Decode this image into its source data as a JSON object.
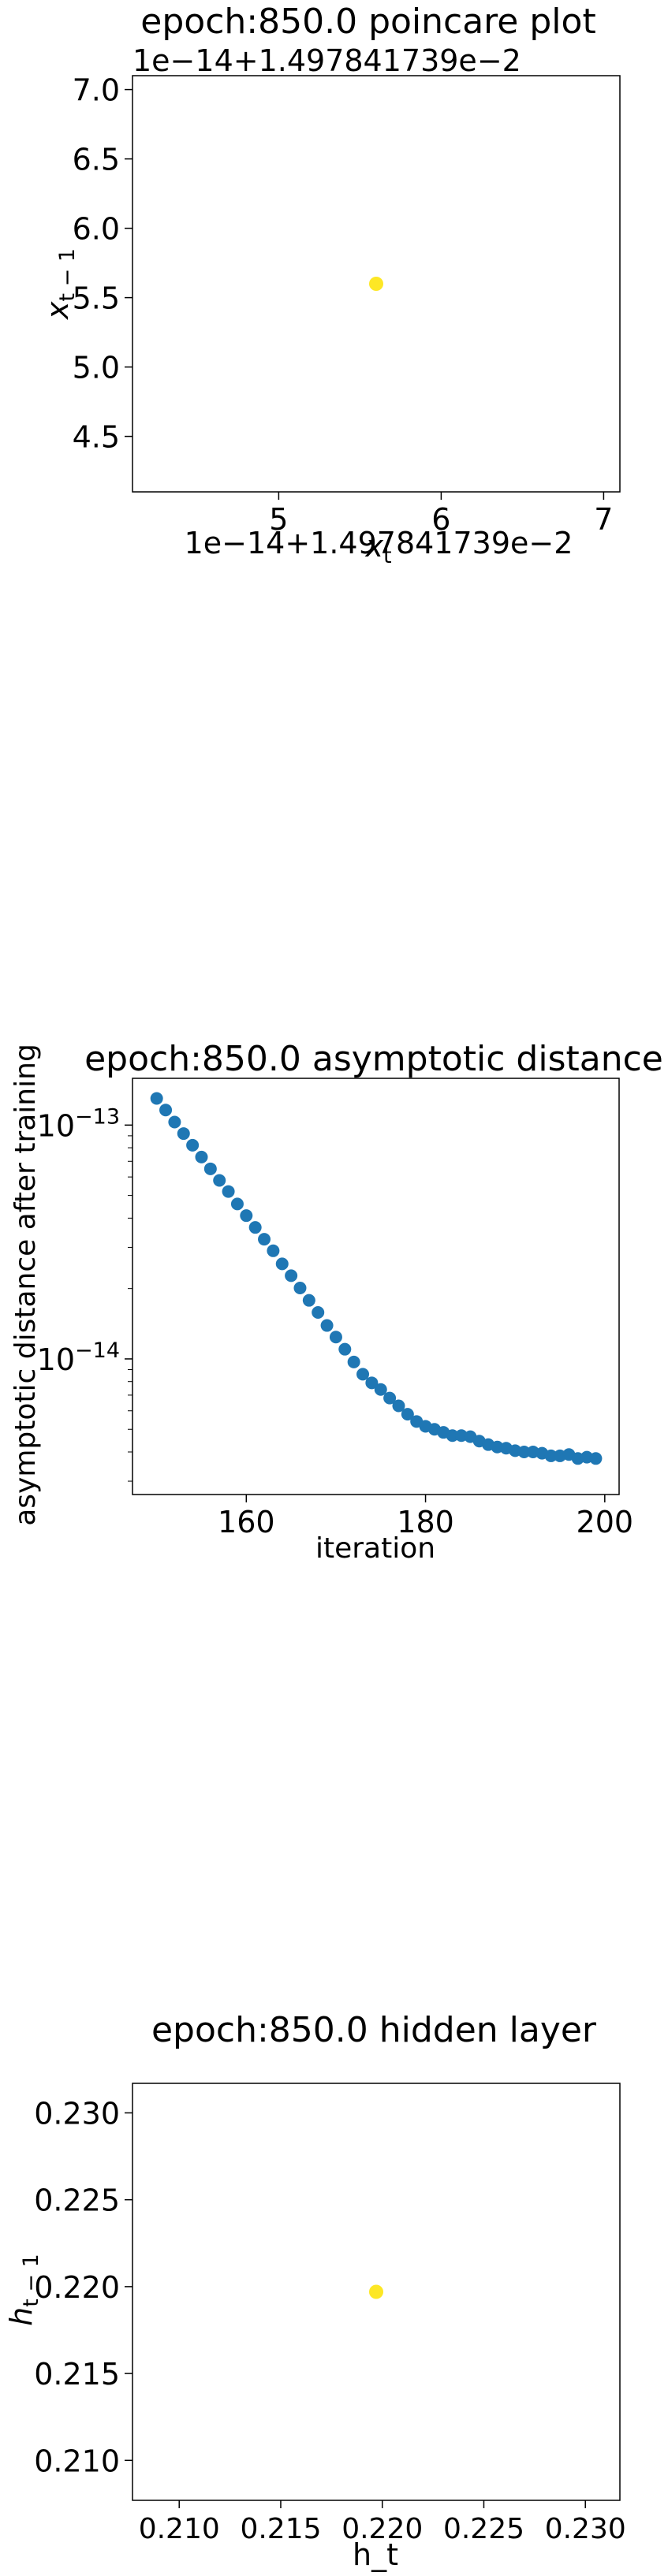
{
  "colors": {
    "point_yellow": "#fde725",
    "series_blue": "#1f77b4",
    "axis": "#000000",
    "background": "#ffffff"
  },
  "chart_data": [
    {
      "type": "scatter",
      "title": "epoch:850.0 poincare plot",
      "xlabel": "x_t",
      "ylabel": "x_{t-1}",
      "x_offset_label": "1e−14+1.497841739e−2",
      "y_offset_label": "1e−14+1.497841739e−2",
      "xlim": [
        4.1,
        7.1
      ],
      "ylim": [
        4.1,
        7.1
      ],
      "xticks": [
        5,
        6,
        7
      ],
      "xtick_labels": [
        "5",
        "6",
        "7"
      ],
      "yticks": [
        4.5,
        5.0,
        5.5,
        6.0,
        6.5,
        7.0
      ],
      "ytick_labels": [
        "4.5",
        "5.0",
        "5.5",
        "6.0",
        "6.5",
        "7.0"
      ],
      "points": [
        {
          "x": 5.6,
          "y": 5.6
        }
      ],
      "point_color": "#fde725",
      "grid": false
    },
    {
      "type": "scatter",
      "title": "epoch:850.0 asymptotic distance",
      "xlabel": "iteration",
      "ylabel": "asymptotic distance after training",
      "yscale": "log",
      "xlim": [
        147.3,
        201.6
      ],
      "ylim_log10": [
        -14.58,
        -12.8
      ],
      "xticks": [
        160,
        180,
        200
      ],
      "xtick_labels": [
        "160",
        "180",
        "200"
      ],
      "yticks_log10": [
        -14,
        -13
      ],
      "ytick_base": "10",
      "ytick_exponents": [
        "−14",
        "−13"
      ],
      "x": [
        150,
        151,
        152,
        153,
        154,
        155,
        156,
        157,
        158,
        159,
        160,
        161,
        162,
        163,
        164,
        165,
        166,
        167,
        168,
        169,
        170,
        171,
        172,
        173,
        174,
        175,
        176,
        177,
        178,
        179,
        180,
        181,
        182,
        183,
        184,
        185,
        186,
        187,
        188,
        189,
        190,
        191,
        192,
        193,
        194,
        195,
        196,
        197,
        198,
        199
      ],
      "y": [
        1.3e-13,
        1.16e-13,
        1.03e-13,
        9.2e-14,
        8.2e-14,
        7.3e-14,
        6.5e-14,
        5.8e-14,
        5.2e-14,
        4.6e-14,
        4.1e-14,
        3.65e-14,
        3.25e-14,
        2.9e-14,
        2.55e-14,
        2.27e-14,
        2.01e-14,
        1.78e-14,
        1.58e-14,
        1.39e-14,
        1.24e-14,
        1.1e-14,
        9.7e-15,
        8.6e-15,
        7.9e-15,
        7.4e-15,
        6.8e-15,
        6.3e-15,
        5.8e-15,
        5.4e-15,
        5.15e-15,
        5e-15,
        4.85e-15,
        4.7e-15,
        4.7e-15,
        4.65e-15,
        4.45e-15,
        4.3e-15,
        4.2e-15,
        4.15e-15,
        4.05e-15,
        4e-15,
        4e-15,
        3.95e-15,
        3.85e-15,
        3.85e-15,
        3.9e-15,
        3.75e-15,
        3.8e-15,
        3.75e-15
      ],
      "point_color": "#1f77b4",
      "grid": false
    },
    {
      "type": "scatter",
      "title": "epoch:850.0 hidden layer",
      "xlabel": "h_t",
      "ylabel": "h_{t-1}",
      "xlim": [
        0.2077,
        0.2317
      ],
      "ylim": [
        0.2077,
        0.2317
      ],
      "xticks": [
        0.21,
        0.215,
        0.22,
        0.225,
        0.23
      ],
      "xtick_labels": [
        "0.210",
        "0.215",
        "0.220",
        "0.225",
        "0.230"
      ],
      "yticks": [
        0.21,
        0.215,
        0.22,
        0.225,
        0.23
      ],
      "ytick_labels": [
        "0.210",
        "0.215",
        "0.220",
        "0.225",
        "0.230"
      ],
      "points": [
        {
          "x": 0.2197,
          "y": 0.2197
        }
      ],
      "point_color": "#fde725",
      "grid": false
    }
  ]
}
